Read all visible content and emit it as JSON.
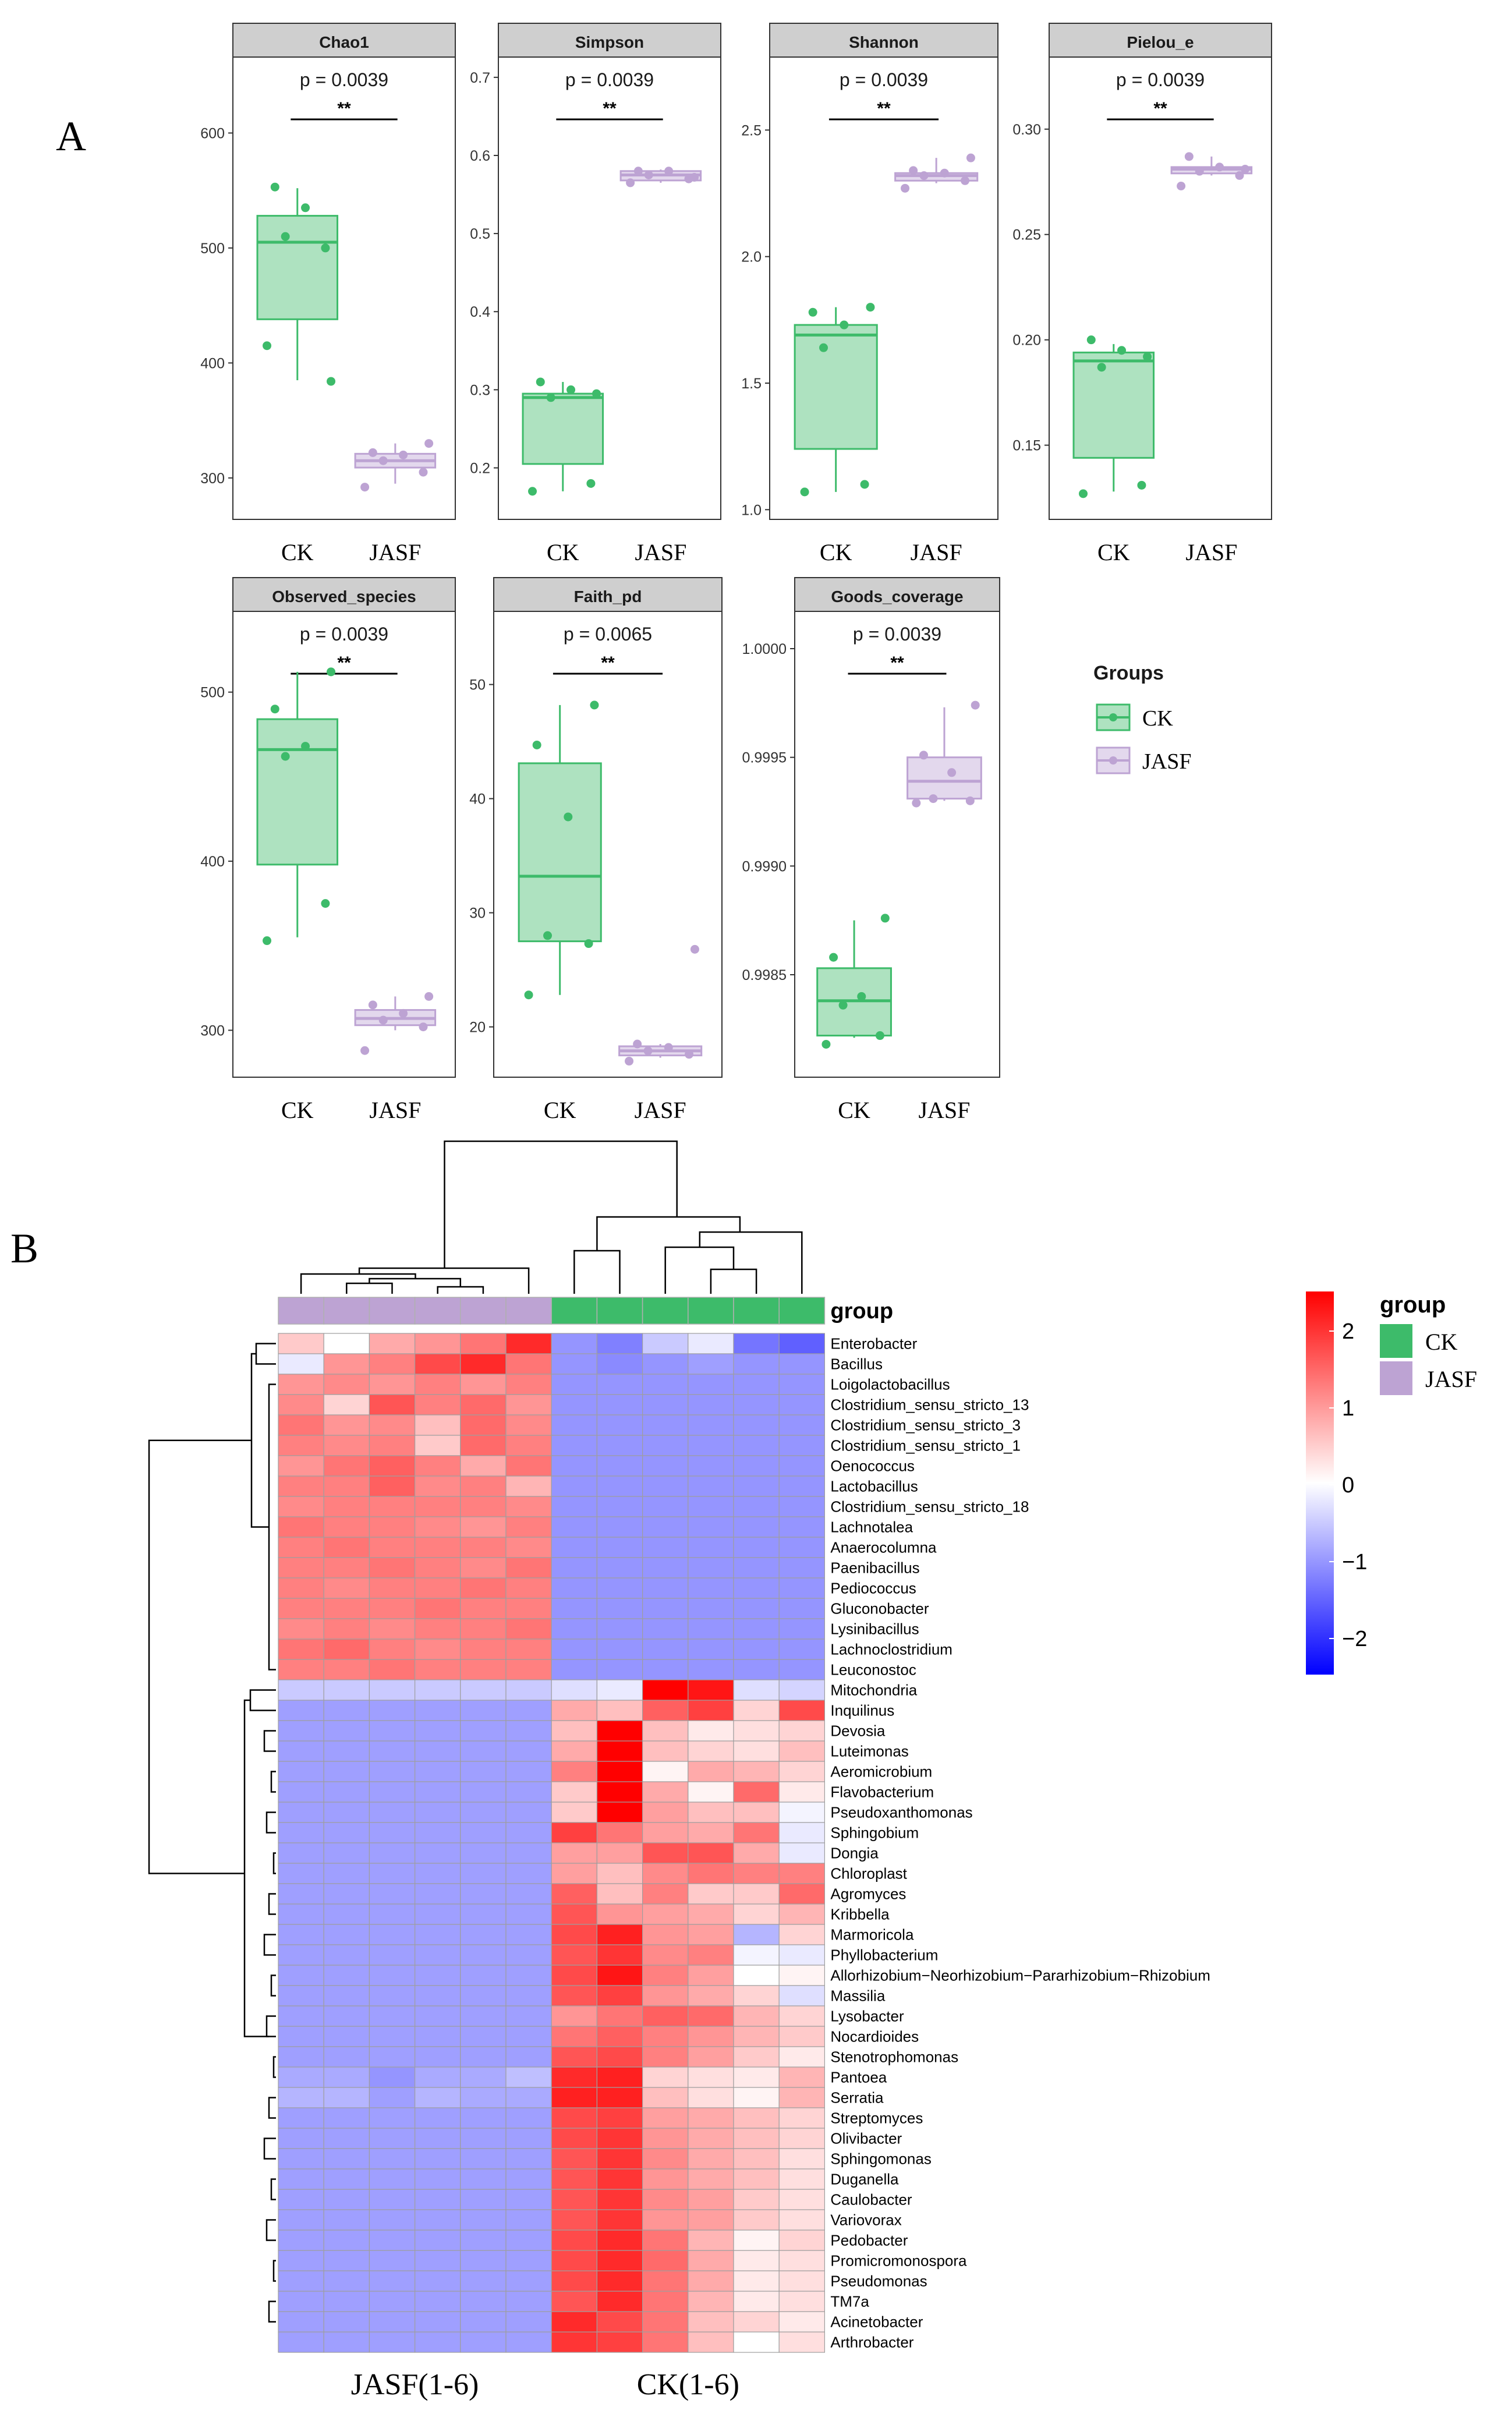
{
  "panel_a_label": "A",
  "panel_b_label": "B",
  "group_labels": [
    "CK",
    "JASF"
  ],
  "colors": {
    "CK": "#3dbb6a",
    "JASF": "#bda3d3",
    "panel_bg": "#cfcfcf"
  },
  "legend_a": {
    "title": "Groups",
    "items": [
      "CK",
      "JASF"
    ]
  },
  "legend_b": {
    "title": "group",
    "items": [
      "CK",
      "JASF"
    ]
  },
  "colorbar": {
    "ticks": [
      "2",
      "1",
      "0",
      "−1",
      "−2"
    ]
  },
  "heatmap_annotation_label": "group",
  "heatmap_bottom_labels": [
    "JASF(1-6)",
    "CK(1-6)"
  ],
  "chart_data": [
    {
      "type": "box",
      "title": "Chao1",
      "p": "p = 0.0039",
      "sig": "**",
      "yticks": [
        "300",
        "400",
        "500",
        "600"
      ],
      "ylim": [
        268,
        662
      ],
      "groups": [
        {
          "name": "CK",
          "min": 385,
          "q1": 438,
          "median": 505,
          "q3": 528,
          "max": 552,
          "points": [
            415,
            500,
            510,
            535,
            553,
            384
          ]
        },
        {
          "name": "JASF",
          "min": 295,
          "q1": 309,
          "median": 315,
          "q3": 321,
          "max": 330,
          "points": [
            292,
            305,
            315,
            320,
            322,
            330
          ]
        }
      ]
    },
    {
      "type": "box",
      "title": "Simpson",
      "p": "p = 0.0039",
      "sig": "**",
      "yticks": [
        "0.2",
        "0.3",
        "0.4",
        "0.5",
        "0.6",
        "0.7"
      ],
      "yvals": [
        0.2,
        0.3,
        0.4,
        0.5,
        0.6,
        0.7
      ],
      "ylim": [
        0.14,
        0.72
      ],
      "groups": [
        {
          "name": "CK",
          "min": 0.17,
          "q1": 0.205,
          "median": 0.29,
          "q3": 0.295,
          "max": 0.31,
          "points": [
            0.17,
            0.18,
            0.29,
            0.3,
            0.31,
            0.295
          ]
        },
        {
          "name": "JASF",
          "min": 0.565,
          "q1": 0.568,
          "median": 0.575,
          "q3": 0.58,
          "max": 0.582,
          "points": [
            0.565,
            0.57,
            0.575,
            0.58,
            0.58,
            0.572
          ]
        }
      ]
    },
    {
      "type": "box",
      "title": "Shannon",
      "p": "p = 0.0039",
      "sig": "**",
      "yticks": [
        "1.0",
        "1.5",
        "2.0",
        "2.5"
      ],
      "yvals": [
        1.0,
        1.5,
        2.0,
        2.5
      ],
      "ylim": [
        0.98,
        2.77
      ],
      "groups": [
        {
          "name": "CK",
          "min": 1.07,
          "q1": 1.24,
          "median": 1.69,
          "q3": 1.73,
          "max": 1.8,
          "points": [
            1.07,
            1.1,
            1.64,
            1.73,
            1.78,
            1.8
          ]
        },
        {
          "name": "JASF",
          "min": 2.29,
          "q1": 2.3,
          "median": 2.32,
          "q3": 2.33,
          "max": 2.39,
          "points": [
            2.27,
            2.3,
            2.32,
            2.33,
            2.34,
            2.39
          ]
        }
      ]
    },
    {
      "type": "box",
      "title": "Pielou_e",
      "p": "p = 0.0039",
      "sig": "**",
      "yticks": [
        "0.15",
        "0.20",
        "0.25",
        "0.30"
      ],
      "yvals": [
        0.15,
        0.2,
        0.25,
        0.3
      ],
      "ylim": [
        0.117,
        0.332
      ],
      "groups": [
        {
          "name": "CK",
          "min": 0.128,
          "q1": 0.144,
          "median": 0.19,
          "q3": 0.194,
          "max": 0.198,
          "points": [
            0.127,
            0.131,
            0.187,
            0.195,
            0.2,
            0.192
          ]
        },
        {
          "name": "JASF",
          "min": 0.278,
          "q1": 0.279,
          "median": 0.281,
          "q3": 0.282,
          "max": 0.287,
          "points": [
            0.273,
            0.278,
            0.28,
            0.282,
            0.287,
            0.281
          ]
        }
      ]
    },
    {
      "type": "box",
      "title": "Observed_species",
      "p": "p = 0.0039",
      "sig": "**",
      "yticks": [
        "300",
        "400",
        "500"
      ],
      "yvals": [
        300,
        400,
        500
      ],
      "ylim": [
        275,
        545
      ],
      "groups": [
        {
          "name": "CK",
          "min": 355,
          "q1": 398,
          "median": 466,
          "q3": 484,
          "max": 512,
          "points": [
            353,
            375,
            462,
            468,
            490,
            512
          ]
        },
        {
          "name": "JASF",
          "min": 300,
          "q1": 303,
          "median": 307,
          "q3": 312,
          "max": 320,
          "points": [
            288,
            302,
            306,
            310,
            315,
            320
          ]
        }
      ]
    },
    {
      "type": "box",
      "title": "Faith_pd",
      "p": "p = 0.0065",
      "sig": "**",
      "yticks": [
        "20",
        "30",
        "40",
        "50"
      ],
      "yvals": [
        20,
        30,
        40,
        50
      ],
      "ylim": [
        16,
        56
      ],
      "groups": [
        {
          "name": "CK",
          "min": 22.8,
          "q1": 27.5,
          "median": 33.2,
          "q3": 43.1,
          "max": 48.2,
          "points": [
            22.8,
            27.3,
            28.0,
            38.4,
            44.7,
            48.2
          ]
        },
        {
          "name": "JASF",
          "min": 17.3,
          "q1": 17.5,
          "median": 17.9,
          "q3": 18.3,
          "max": 18.5,
          "points": [
            17.0,
            17.6,
            17.9,
            18.2,
            18.5,
            26.8
          ]
        }
      ]
    },
    {
      "type": "box",
      "title": "Goods_coverage",
      "p": "p = 0.0039",
      "sig": "**",
      "yticks": [
        "0.9985",
        "0.9990",
        "0.9995",
        "1.0000"
      ],
      "yvals": [
        0.9985,
        0.999,
        0.9995,
        1.0
      ],
      "ylim": [
        0.99805,
        1.00015
      ],
      "groups": [
        {
          "name": "CK",
          "min": 0.99821,
          "q1": 0.99822,
          "median": 0.99838,
          "q3": 0.99853,
          "max": 0.99875,
          "points": [
            0.99818,
            0.99822,
            0.99836,
            0.9984,
            0.99858,
            0.99876
          ]
        },
        {
          "name": "JASF",
          "min": 0.9993,
          "q1": 0.99931,
          "median": 0.99939,
          "q3": 0.9995,
          "max": 0.99973,
          "points": [
            0.99929,
            0.9993,
            0.99931,
            0.99943,
            0.99951,
            0.99974
          ]
        }
      ]
    },
    {
      "type": "heatmap",
      "title": "",
      "columns": [
        "JASF1",
        "JASF2",
        "JASF3",
        "JASF4",
        "JASF5",
        "JASF6",
        "CK1",
        "CK2",
        "CK3",
        "CK4",
        "CK5",
        "CK6"
      ],
      "column_groups": [
        "JASF",
        "JASF",
        "JASF",
        "JASF",
        "JASF",
        "JASF",
        "CK",
        "CK",
        "CK",
        "CK",
        "CK",
        "CK"
      ],
      "color_range": [
        -2,
        2
      ],
      "rows": [
        "Enterobacter",
        "Bacillus",
        "Loigolactobacillus",
        "Clostridium_sensu_stricto_13",
        "Clostridium_sensu_stricto_3",
        "Clostridium_sensu_stricto_1",
        "Oenococcus",
        "Lactobacillus",
        "Clostridium_sensu_stricto_18",
        "Lachnotalea",
        "Anaerocolumna",
        "Paenibacillus",
        "Pediococcus",
        "Gluconobacter",
        "Lysinibacillus",
        "Lachnoclostridium",
        "Leuconostoc",
        "Mitochondria",
        "Inquilinus",
        "Devosia",
        "Luteimonas",
        "Aeromicrobium",
        "Flavobacterium",
        "Pseudoxanthomonas",
        "Sphingobium",
        "Dongia",
        "Chloroplast",
        "Agromyces",
        "Kribbella",
        "Marmoricola",
        "Phyllobacterium",
        "Allorhizobium−Neorhizobium−Pararhizobium−Rhizobium",
        "Massilia",
        "Lysobacter",
        "Nocardioides",
        "Stenotrophomonas",
        "Pantoea",
        "Serratia",
        "Streptomyces",
        "Olivibacter",
        "Sphingomonas",
        "Duganella",
        "Caulobacter",
        "Variovorax",
        "Pedobacter",
        "Promicromonospora",
        "Pseudomonas",
        "TM7a",
        "Acinetobacter",
        "Arthrobacter"
      ],
      "values": [
        [
          0.5,
          0.0,
          0.8,
          1.0,
          1.3,
          2.0,
          -1.0,
          -1.2,
          -0.5,
          -0.2,
          -1.3,
          -1.5
        ],
        [
          -0.2,
          1.0,
          1.2,
          1.7,
          2.0,
          1.3,
          -1.0,
          -1.1,
          -1.0,
          -0.9,
          -1.0,
          -1.0
        ],
        [
          1.0,
          1.1,
          1.0,
          1.2,
          1.0,
          1.2,
          -1.0,
          -1.0,
          -1.0,
          -1.0,
          -1.0,
          -1.0
        ],
        [
          1.1,
          0.4,
          1.6,
          1.2,
          1.4,
          1.0,
          -1.0,
          -1.0,
          -1.0,
          -1.0,
          -1.0,
          -1.0
        ],
        [
          1.3,
          1.0,
          1.1,
          0.6,
          1.4,
          1.1,
          -1.0,
          -1.0,
          -1.0,
          -1.0,
          -1.0,
          -1.0
        ],
        [
          1.2,
          1.1,
          1.2,
          0.5,
          1.4,
          1.2,
          -1.0,
          -1.0,
          -1.0,
          -1.0,
          -1.0,
          -1.0
        ],
        [
          1.0,
          1.3,
          1.5,
          1.2,
          0.8,
          1.3,
          -1.0,
          -1.0,
          -1.0,
          -1.0,
          -1.0,
          -1.0
        ],
        [
          1.2,
          1.2,
          1.5,
          1.1,
          1.2,
          0.7,
          -1.0,
          -1.0,
          -1.0,
          -1.0,
          -1.0,
          -1.0
        ],
        [
          1.1,
          1.2,
          1.2,
          1.2,
          1.2,
          1.1,
          -1.0,
          -1.0,
          -1.0,
          -1.0,
          -1.0,
          -1.0
        ],
        [
          1.3,
          1.2,
          1.2,
          1.1,
          1.0,
          1.2,
          -1.0,
          -1.0,
          -1.0,
          -1.0,
          -1.0,
          -1.0
        ],
        [
          1.2,
          1.3,
          1.2,
          1.2,
          1.2,
          1.1,
          -1.0,
          -1.0,
          -1.0,
          -1.0,
          -1.0,
          -1.0
        ],
        [
          1.2,
          1.2,
          1.3,
          1.2,
          1.1,
          1.3,
          -1.0,
          -1.0,
          -1.0,
          -1.0,
          -1.0,
          -1.0
        ],
        [
          1.2,
          1.1,
          1.2,
          1.2,
          1.3,
          1.2,
          -1.0,
          -1.0,
          -1.0,
          -1.0,
          -1.0,
          -1.0
        ],
        [
          1.2,
          1.2,
          1.2,
          1.3,
          1.2,
          1.2,
          -1.0,
          -1.0,
          -1.0,
          -1.0,
          -1.0,
          -1.0
        ],
        [
          1.1,
          1.2,
          1.1,
          1.2,
          1.2,
          1.3,
          -1.0,
          -1.0,
          -1.0,
          -1.0,
          -1.0,
          -1.0
        ],
        [
          1.3,
          1.4,
          1.2,
          1.1,
          1.2,
          1.2,
          -1.0,
          -1.0,
          -1.0,
          -1.0,
          -1.0,
          -1.0
        ],
        [
          1.2,
          1.2,
          1.3,
          1.2,
          1.2,
          1.2,
          -1.0,
          -1.0,
          -1.0,
          -1.0,
          -1.0,
          -1.0
        ],
        [
          -0.5,
          -0.5,
          -0.5,
          -0.5,
          -0.5,
          -0.5,
          -0.3,
          -0.2,
          2.4,
          2.2,
          -0.3,
          -0.4
        ],
        [
          -0.9,
          -0.9,
          -0.9,
          -0.9,
          -0.9,
          -0.9,
          0.8,
          0.6,
          1.5,
          1.8,
          0.4,
          1.7
        ],
        [
          -0.9,
          -0.9,
          -0.9,
          -0.9,
          -0.9,
          -0.9,
          0.6,
          2.4,
          0.6,
          0.2,
          0.3,
          0.4
        ],
        [
          -0.9,
          -0.9,
          -0.9,
          -0.9,
          -0.9,
          -0.9,
          0.8,
          2.4,
          0.6,
          0.4,
          0.3,
          0.6
        ],
        [
          -0.9,
          -0.9,
          -0.9,
          -0.9,
          -0.9,
          -0.9,
          1.2,
          2.4,
          0.1,
          0.8,
          0.7,
          0.4
        ],
        [
          -0.9,
          -0.9,
          -0.9,
          -0.9,
          -0.9,
          -0.9,
          0.5,
          2.4,
          0.8,
          0.1,
          1.4,
          0.2
        ],
        [
          -0.9,
          -0.9,
          -0.9,
          -0.9,
          -0.9,
          -0.9,
          0.5,
          2.4,
          0.9,
          0.6,
          0.6,
          -0.1
        ],
        [
          -0.9,
          -0.9,
          -0.9,
          -0.9,
          -0.9,
          -0.9,
          1.8,
          1.3,
          0.9,
          0.8,
          1.3,
          -0.2
        ],
        [
          -0.9,
          -0.9,
          -0.9,
          -0.9,
          -0.9,
          -0.9,
          0.9,
          0.9,
          1.6,
          1.6,
          0.8,
          -0.2
        ],
        [
          -0.9,
          -0.9,
          -0.9,
          -0.9,
          -0.9,
          -0.9,
          0.9,
          0.6,
          1.1,
          1.3,
          1.2,
          1.2
        ],
        [
          -0.9,
          -0.9,
          -0.9,
          -0.9,
          -0.9,
          -0.9,
          1.5,
          0.6,
          1.2,
          0.5,
          0.5,
          1.4
        ],
        [
          -0.9,
          -0.9,
          -0.9,
          -0.9,
          -0.9,
          -0.9,
          1.6,
          1.0,
          0.9,
          0.8,
          0.4,
          0.7
        ],
        [
          -0.9,
          -0.9,
          -0.9,
          -0.9,
          -0.9,
          -0.9,
          1.7,
          2.1,
          1.0,
          0.9,
          -0.7,
          0.4
        ],
        [
          -0.9,
          -0.9,
          -0.9,
          -0.9,
          -0.9,
          -0.9,
          1.6,
          1.9,
          1.1,
          1.2,
          -0.1,
          -0.2
        ],
        [
          -0.9,
          -0.9,
          -0.9,
          -0.9,
          -0.9,
          -0.9,
          1.7,
          2.2,
          1.2,
          0.9,
          0.0,
          0.1
        ],
        [
          -0.9,
          -0.9,
          -0.9,
          -0.9,
          -0.9,
          -0.9,
          1.6,
          1.8,
          1.0,
          0.8,
          0.4,
          -0.3
        ],
        [
          -0.9,
          -0.9,
          -0.9,
          -0.9,
          -0.9,
          -0.9,
          1.0,
          1.3,
          1.5,
          1.4,
          0.7,
          0.4
        ],
        [
          -0.9,
          -0.9,
          -0.9,
          -0.9,
          -0.9,
          -0.9,
          1.3,
          1.5,
          1.2,
          1.0,
          0.7,
          0.5
        ],
        [
          -0.9,
          -0.9,
          -0.9,
          -0.9,
          -0.9,
          -0.9,
          1.6,
          1.7,
          1.2,
          0.9,
          0.5,
          0.2
        ],
        [
          -0.8,
          -0.8,
          -1.0,
          -0.8,
          -0.8,
          -0.6,
          2.0,
          2.1,
          0.4,
          0.3,
          0.2,
          0.7
        ],
        [
          -0.7,
          -0.7,
          -0.9,
          -0.7,
          -0.8,
          -0.8,
          2.1,
          2.1,
          0.6,
          0.3,
          0.1,
          0.7
        ],
        [
          -0.9,
          -0.9,
          -0.9,
          -0.9,
          -0.9,
          -0.9,
          1.7,
          1.8,
          0.9,
          0.8,
          0.6,
          0.4
        ],
        [
          -0.9,
          -0.9,
          -0.9,
          -0.9,
          -0.9,
          -0.9,
          1.7,
          1.9,
          1.0,
          0.8,
          0.6,
          0.4
        ],
        [
          -0.9,
          -0.9,
          -0.9,
          -0.9,
          -0.9,
          -0.9,
          1.6,
          1.9,
          1.1,
          0.8,
          0.6,
          0.3
        ],
        [
          -0.9,
          -0.9,
          -0.9,
          -0.9,
          -0.9,
          -0.9,
          1.6,
          1.9,
          1.0,
          0.8,
          0.6,
          0.3
        ],
        [
          -0.9,
          -0.9,
          -0.9,
          -0.9,
          -0.9,
          -0.9,
          1.6,
          1.9,
          1.1,
          0.9,
          0.5,
          0.3
        ],
        [
          -0.9,
          -0.9,
          -0.9,
          -0.9,
          -0.9,
          -0.9,
          1.6,
          1.9,
          1.0,
          0.9,
          0.5,
          0.3
        ],
        [
          -0.9,
          -0.9,
          -0.9,
          -0.9,
          -0.9,
          -0.9,
          1.7,
          2.0,
          1.3,
          0.7,
          0.1,
          0.4
        ],
        [
          -0.9,
          -0.9,
          -0.9,
          -0.9,
          -0.9,
          -0.9,
          1.7,
          2.0,
          1.4,
          0.8,
          0.2,
          0.3
        ],
        [
          -0.9,
          -0.9,
          -0.9,
          -0.9,
          -0.9,
          -0.9,
          1.7,
          2.0,
          1.3,
          0.8,
          0.2,
          0.3
        ],
        [
          -0.9,
          -0.9,
          -0.9,
          -0.9,
          -0.9,
          -0.9,
          1.6,
          2.0,
          1.3,
          0.7,
          0.2,
          0.3
        ],
        [
          -0.9,
          -0.9,
          -0.9,
          -0.9,
          -0.9,
          -0.9,
          2.0,
          1.7,
          1.3,
          0.6,
          0.4,
          0.2
        ],
        [
          -0.9,
          -0.9,
          -0.9,
          -0.9,
          -0.9,
          -0.9,
          1.9,
          1.8,
          1.3,
          0.6,
          0.0,
          0.3
        ]
      ]
    }
  ]
}
